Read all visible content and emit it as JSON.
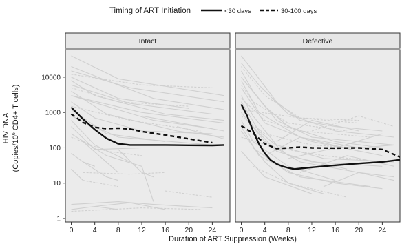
{
  "chart_data": {
    "type": "line",
    "facet_by": "Proviral type",
    "legend": {
      "title": "Timing of ART Initiation",
      "position": "top",
      "entries": [
        {
          "label": "<30 days",
          "style": "solid",
          "color": "#111111"
        },
        {
          "label": "30-100 days",
          "style": "dashed",
          "color": "#111111"
        }
      ]
    },
    "xlabel": "Duration of ART Suppression (Weeks)",
    "ylabel_line1": "HIV DNA",
    "ylabel_line2_pre": "(Copies/10",
    "ylabel_line2_sup": "6",
    "ylabel_line2_post": " CD4+ T cells)",
    "y_scale": "log10",
    "xlim": [
      -1,
      27
    ],
    "ylim": [
      0.8,
      60000
    ],
    "x_ticks": [
      0,
      4,
      8,
      12,
      16,
      20,
      24
    ],
    "y_ticks": [
      1,
      10,
      100,
      1000,
      10000
    ],
    "y_tick_labels": [
      "1",
      "10",
      "100",
      "1000",
      "10000"
    ],
    "background_color": "#ebebeb",
    "gridlines": false,
    "individual_color": "#cfcfcf",
    "panels": [
      {
        "title": "Intact",
        "series": [
          {
            "group": "<30 days",
            "style": "solid",
            "x": [
              0,
              2,
              4,
              6,
              8,
              10,
              12,
              16,
              20,
              24,
              26
            ],
            "y": [
              1400,
              650,
              330,
              185,
              130,
              120,
              120,
              120,
              118,
              117,
              120
            ]
          },
          {
            "group": "30-100 days",
            "style": "dashed",
            "x": [
              0,
              2,
              4,
              6,
              8,
              10,
              12,
              16,
              20,
              24
            ],
            "y": [
              900,
              520,
              380,
              350,
              360,
              340,
              290,
              230,
              180,
              140
            ]
          }
        ],
        "individual_traces": [
          {
            "style": "solid",
            "x": [
              0,
              8,
              26
            ],
            "y": [
              40000,
              9000,
              3000
            ]
          },
          {
            "style": "solid",
            "x": [
              0,
              6,
              14,
              26
            ],
            "y": [
              20000,
              8000,
              2500,
              1200
            ]
          },
          {
            "style": "solid",
            "x": [
              0,
              10,
              26
            ],
            "y": [
              15000,
              5000,
              2000
            ]
          },
          {
            "style": "dashed",
            "x": [
              0,
              12,
              24
            ],
            "y": [
              12000,
              6000,
              5000
            ]
          },
          {
            "style": "solid",
            "x": [
              0,
              8,
              20
            ],
            "y": [
              10000,
              2500,
              1300
            ]
          },
          {
            "style": "solid",
            "x": [
              0,
              4,
              16,
              26
            ],
            "y": [
              8000,
              3000,
              900,
              600
            ]
          },
          {
            "style": "solid",
            "x": [
              0,
              10,
              24
            ],
            "y": [
              6000,
              1800,
              900
            ]
          },
          {
            "style": "dashed",
            "x": [
              0,
              8,
              20
            ],
            "y": [
              5000,
              2000,
              1500
            ]
          },
          {
            "style": "solid",
            "x": [
              0,
              6,
              18,
              26
            ],
            "y": [
              4000,
              900,
              300,
              200
            ]
          },
          {
            "style": "solid",
            "x": [
              0,
              12,
              26
            ],
            "y": [
              3000,
              1000,
              500
            ]
          },
          {
            "style": "solid",
            "x": [
              0,
              4,
              12,
              24
            ],
            "y": [
              2000,
              700,
              300,
              250
            ]
          },
          {
            "style": "dashed",
            "x": [
              0,
              10,
              22
            ],
            "y": [
              1500,
              600,
              300
            ]
          },
          {
            "style": "solid",
            "x": [
              0,
              6,
              16
            ],
            "y": [
              1200,
              250,
              150
            ]
          },
          {
            "style": "solid",
            "x": [
              0,
              8,
              24
            ],
            "y": [
              800,
              200,
              120
            ]
          },
          {
            "style": "solid",
            "x": [
              0,
              4,
              10
            ],
            "y": [
              600,
              120,
              40
            ]
          },
          {
            "style": "solid",
            "x": [
              0,
              4,
              12
            ],
            "y": [
              400,
              90,
              100
            ]
          },
          {
            "style": "solid",
            "x": [
              0,
              6,
              12,
              14
            ],
            "y": [
              250,
              60,
              30,
              3
            ]
          },
          {
            "style": "solid",
            "x": [
              2,
              8
            ],
            "y": [
              150,
              20
            ]
          },
          {
            "style": "dashed",
            "x": [
              0,
              6,
              12
            ],
            "y": [
              200,
              80,
              60
            ]
          },
          {
            "style": "solid",
            "x": [
              8,
              12,
              14
            ],
            "y": [
              90,
              20,
              15
            ]
          },
          {
            "style": "solid",
            "x": [
              0,
              2,
              4
            ],
            "y": [
              70,
              40,
              30
            ]
          },
          {
            "style": "solid",
            "x": [
              2,
              6,
              8
            ],
            "y": [
              40,
              15,
              12
            ]
          },
          {
            "style": "solid",
            "x": [
              0,
              2
            ],
            "y": [
              25,
              12
            ]
          },
          {
            "style": "dashed",
            "x": [
              2,
              10,
              16
            ],
            "y": [
              20,
              18,
              20
            ]
          },
          {
            "style": "dashed",
            "x": [
              2,
              8
            ],
            "y": [
              12,
              8
            ]
          },
          {
            "style": "solid",
            "x": [
              0,
              4,
              8
            ],
            "y": [
              1.8,
              2.2,
              1.8
            ]
          },
          {
            "style": "solid",
            "x": [
              4,
              10,
              16
            ],
            "y": [
              2.2,
              2.8,
              1.8
            ]
          },
          {
            "style": "solid",
            "x": [
              0,
              8,
              14,
              24
            ],
            "y": [
              2.5,
              3,
              2.5,
              2
            ]
          },
          {
            "style": "dashed",
            "x": [
              0,
              12,
              22
            ],
            "y": [
              1.6,
              2,
              1.8
            ]
          },
          {
            "style": "dashed",
            "x": [
              16,
              24
            ],
            "y": [
              6,
              4
            ]
          },
          {
            "style": "solid",
            "x": [
              18,
              26
            ],
            "y": [
              400,
              180
            ]
          },
          {
            "style": "solid",
            "x": [
              12,
              26
            ],
            "y": [
              800,
              300
            ]
          },
          {
            "style": "solid",
            "x": [
              0,
              14,
              24
            ],
            "y": [
              3000,
              600,
              350
            ]
          }
        ]
      },
      {
        "title": "Defective",
        "series": [
          {
            "group": "<30 days",
            "style": "solid",
            "x": [
              0,
              1,
              2,
              3,
              4,
              5,
              6,
              7,
              8,
              9,
              10,
              12,
              16,
              20,
              24,
              27
            ],
            "y": [
              1700,
              800,
              300,
              130,
              70,
              45,
              35,
              30,
              27,
              25,
              26,
              28,
              32,
              36,
              40,
              46
            ]
          },
          {
            "group": "30-100 days",
            "style": "dashed",
            "x": [
              0,
              2,
              4,
              6,
              8,
              10,
              12,
              16,
              20,
              24,
              27
            ],
            "y": [
              420,
              260,
              130,
              95,
              100,
              105,
              100,
              98,
              100,
              90,
              55
            ]
          }
        ],
        "individual_traces": [
          {
            "style": "solid",
            "x": [
              0,
              2,
              6,
              10,
              16,
              24
            ],
            "y": [
              40000,
              15000,
              2000,
              600,
              400,
              300
            ]
          },
          {
            "style": "solid",
            "x": [
              0,
              3,
              8,
              16,
              26
            ],
            "y": [
              25000,
              6000,
              900,
              300,
              200
            ]
          },
          {
            "style": "dashed",
            "x": [
              0,
              4,
              10,
              20
            ],
            "y": [
              20000,
              3000,
              700,
              500
            ]
          },
          {
            "style": "solid",
            "x": [
              0,
              2,
              6,
              12,
              20,
              26
            ],
            "y": [
              15000,
              4000,
              600,
              200,
              150,
              120
            ]
          },
          {
            "style": "solid",
            "x": [
              0,
              4,
              8,
              16,
              24
            ],
            "y": [
              10000,
              1500,
              400,
              150,
              100
            ]
          },
          {
            "style": "solid",
            "x": [
              0,
              3,
              10,
              20
            ],
            "y": [
              8000,
              1000,
              200,
              80
            ]
          },
          {
            "style": "dashed",
            "x": [
              0,
              2,
              8,
              18
            ],
            "y": [
              6000,
              2000,
              500,
              300
            ]
          },
          {
            "style": "solid",
            "x": [
              0,
              4,
              12,
              24
            ],
            "y": [
              5000,
              500,
              150,
              60
            ]
          },
          {
            "style": "solid",
            "x": [
              0,
              2,
              6,
              14,
              26
            ],
            "y": [
              3000,
              800,
              120,
              50,
              40
            ]
          },
          {
            "style": "dashed",
            "x": [
              0,
              4,
              10,
              22
            ],
            "y": [
              2500,
              600,
              300,
              200
            ]
          },
          {
            "style": "solid",
            "x": [
              0,
              3,
              8,
              18
            ],
            "y": [
              2000,
              300,
              60,
              25
            ]
          },
          {
            "style": "solid",
            "x": [
              0,
              2,
              6,
              12,
              24
            ],
            "y": [
              1500,
              400,
              80,
              40,
              30
            ]
          },
          {
            "style": "solid",
            "x": [
              0,
              4,
              10,
              20,
              26
            ],
            "y": [
              1000,
              150,
              40,
              20,
              15
            ]
          },
          {
            "style": "dashed",
            "x": [
              0,
              4,
              12,
              24
            ],
            "y": [
              800,
              250,
              120,
              90
            ]
          },
          {
            "style": "solid",
            "x": [
              0,
              2,
              8,
              16
            ],
            "y": [
              600,
              150,
              30,
              12
            ]
          },
          {
            "style": "solid",
            "x": [
              0,
              3,
              10,
              22
            ],
            "y": [
              400,
              60,
              15,
              8
            ]
          },
          {
            "style": "solid",
            "x": [
              0,
              4,
              8,
              14
            ],
            "y": [
              300,
              40,
              10,
              5
            ]
          },
          {
            "style": "dashed",
            "x": [
              0,
              6,
              14,
              24
            ],
            "y": [
              200,
              100,
              60,
              40
            ]
          },
          {
            "style": "solid",
            "x": [
              2,
              8,
              16,
              24
            ],
            "y": [
              100,
              20,
              10,
              7
            ]
          },
          {
            "style": "solid",
            "x": [
              0,
              4,
              12
            ],
            "y": [
              80,
              15,
              5
            ]
          },
          {
            "style": "dashed",
            "x": [
              2,
              8,
              18
            ],
            "y": [
              30,
              10,
              4
            ]
          },
          {
            "style": "solid",
            "x": [
              4,
              10,
              20,
              26
            ],
            "y": [
              60,
              200,
              100,
              120
            ]
          },
          {
            "style": "solid",
            "x": [
              6,
              12,
              20
            ],
            "y": [
              150,
              600,
              300
            ]
          },
          {
            "style": "dashed",
            "x": [
              12,
              20,
              26
            ],
            "y": [
              300,
              800,
              400
            ]
          },
          {
            "style": "solid",
            "x": [
              8,
              16,
              24
            ],
            "y": [
              50,
              100,
              250
            ]
          },
          {
            "style": "solid",
            "x": [
              10,
              18,
              26
            ],
            "y": [
              20,
              60,
              30
            ]
          },
          {
            "style": "dashed",
            "x": [
              0,
              10,
              20
            ],
            "y": [
              1200,
              700,
              600
            ]
          },
          {
            "style": "solid",
            "x": [
              14,
              20,
              26
            ],
            "y": [
              8,
              20,
              12
            ]
          }
        ]
      }
    ]
  }
}
